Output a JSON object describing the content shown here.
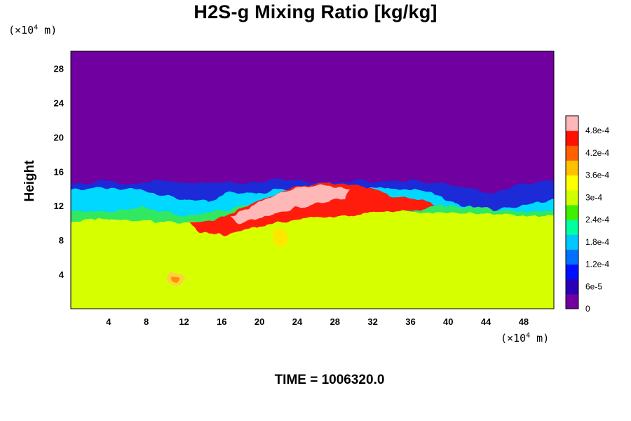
{
  "chart_data": {
    "type": "heatmap",
    "title": "H2S-g Mixing Ratio [kg/kg]",
    "ylabel": "Height",
    "x_unit": {
      "pre": "(×10",
      "exp": "4",
      "post": " m)"
    },
    "y_unit": {
      "pre": "(×10",
      "exp": "4",
      "post": " m)"
    },
    "xlim": [
      0,
      51.2
    ],
    "ylim": [
      0,
      30
    ],
    "x_ticks": [
      4,
      8,
      12,
      16,
      20,
      24,
      28,
      32,
      36,
      40,
      44,
      48
    ],
    "y_ticks": [
      4,
      8,
      12,
      16,
      20,
      24,
      28
    ],
    "x_tick_labels": [
      "4",
      "8",
      "12",
      "16",
      "20",
      "24",
      "28",
      "32",
      "36",
      "40",
      "44",
      "48"
    ],
    "y_tick_labels": [
      "4",
      "8",
      "12",
      "16",
      "20",
      "24",
      "28"
    ],
    "colorbar": {
      "labels": [
        "0",
        "6e-5",
        "1.2e-4",
        "1.8e-4",
        "2.4e-4",
        "3e-4",
        "3.6e-4",
        "4.2e-4",
        "4.8e-4"
      ],
      "values": [
        0,
        6e-05,
        0.00012,
        0.00018,
        0.00024,
        0.0003,
        0.00036,
        0.00042,
        0.00048
      ],
      "max": 0.00052,
      "colors": [
        "#7000a0",
        "#2a00b8",
        "#0010ff",
        "#0070ff",
        "#00c8ff",
        "#00ffa0",
        "#40f000",
        "#d0ff00",
        "#ffff00",
        "#ffc000",
        "#ff6000",
        "#ff1000",
        "#ffb8b8"
      ]
    },
    "regions": [
      {
        "name": "background",
        "value": 0,
        "color": "#7000a0"
      },
      {
        "name": "lower layer",
        "value": 0.00034,
        "color": "#d6ff00"
      },
      {
        "name": "plume core",
        "value": 0.0005,
        "color": "#ffb8b8"
      }
    ]
  },
  "footer": {
    "time_label": "TIME = 1006320.0"
  }
}
